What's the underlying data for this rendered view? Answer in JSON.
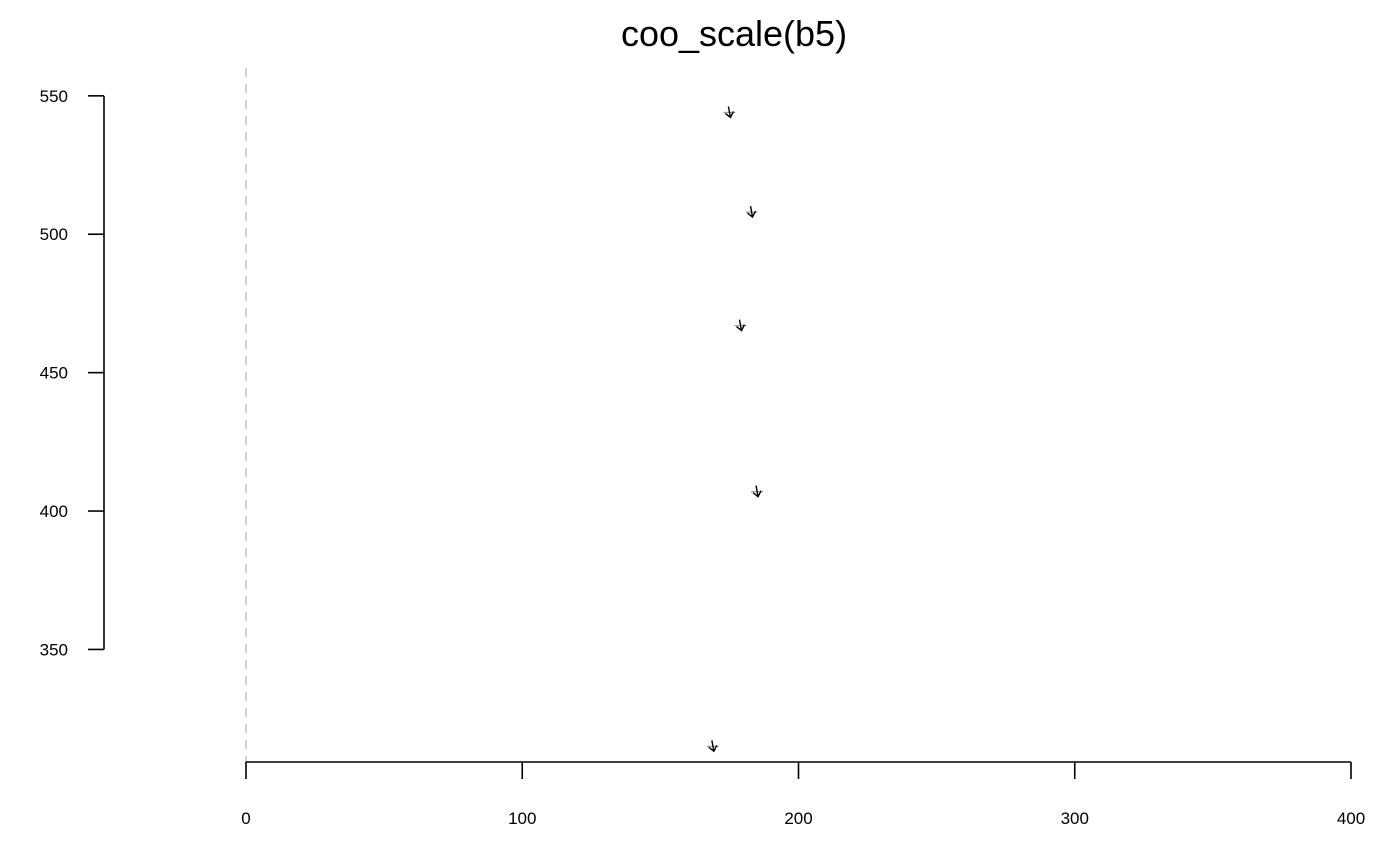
{
  "chart_data": {
    "type": "scatter",
    "title": "coo_scale(b5)",
    "xlabel": "",
    "ylabel": "",
    "xlim": [
      0,
      400
    ],
    "ylim": [
      305,
      555
    ],
    "x_ticks": [
      0,
      100,
      200,
      300,
      400
    ],
    "x_tick_labels": [
      "0",
      "100",
      "200",
      "300",
      "400"
    ],
    "y_ticks": [
      350,
      400,
      450,
      500,
      550
    ],
    "y_tick_labels": [
      "350",
      "400",
      "450",
      "500",
      "550"
    ],
    "grid": false,
    "legend": "none",
    "reference_line": {
      "axis": "x",
      "value": 0,
      "style": "dashed",
      "color": "#bdbdbd"
    },
    "series": [
      {
        "x": [
          175,
          183,
          179,
          185,
          169
        ],
        "y": [
          544,
          508,
          467,
          407,
          315
        ],
        "marker": "small arrow shape",
        "color": "#000000"
      }
    ]
  }
}
